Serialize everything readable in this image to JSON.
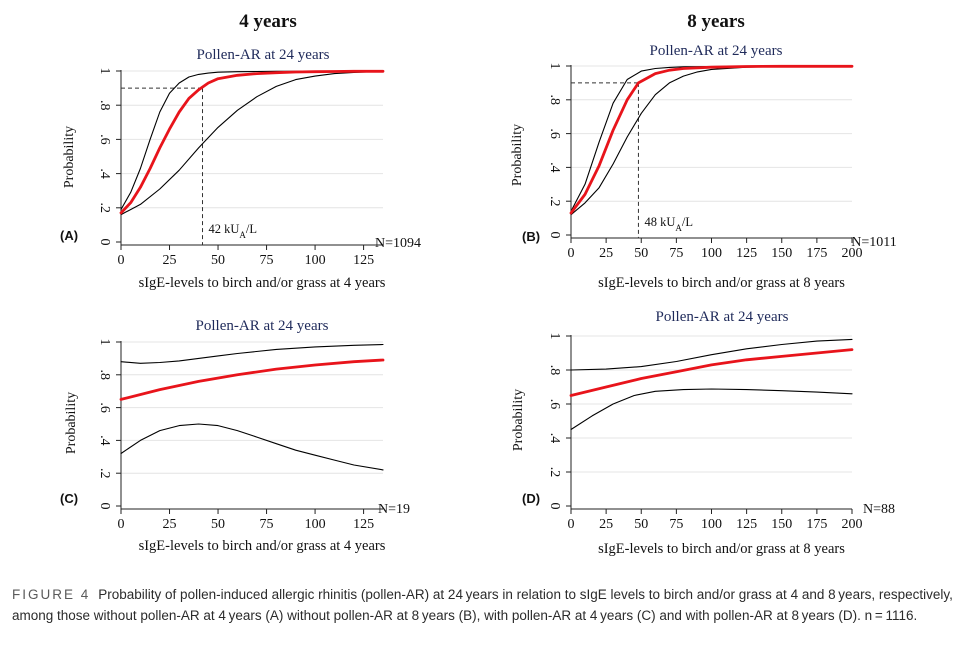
{
  "columns": {
    "left": "4 years",
    "right": "8 years"
  },
  "chart_data": [
    {
      "type": "line",
      "panel": "(A)",
      "title": "Pollen-AR at 24 years",
      "xlabel": "sIgE-levels to birch and/or grass at 4 years",
      "ylabel": "Probability",
      "n_label": "N=1094",
      "xlim": [
        0,
        135
      ],
      "ylim": [
        0,
        1
      ],
      "xticks": [
        "0",
        "25",
        "50",
        "75",
        "100",
        "125"
      ],
      "yticks": [
        "0",
        ".2",
        ".4",
        ".6",
        ".8",
        "1"
      ],
      "annotation": {
        "x": 42,
        "y": 0.9,
        "label_main": "42 kU",
        "label_sub": "A",
        "label_end": "/L"
      },
      "series": [
        {
          "role": "estimate",
          "color": "#e8141b",
          "x": [
            0,
            5,
            10,
            15,
            20,
            25,
            30,
            35,
            40,
            45,
            50,
            60,
            70,
            80,
            90,
            100,
            110,
            120,
            135
          ],
          "y": [
            0.17,
            0.23,
            0.32,
            0.43,
            0.55,
            0.66,
            0.76,
            0.84,
            0.89,
            0.93,
            0.955,
            0.975,
            0.985,
            0.99,
            0.994,
            0.996,
            0.997,
            0.998,
            0.998
          ]
        },
        {
          "role": "upper",
          "color": "#000000",
          "x": [
            0,
            5,
            10,
            15,
            20,
            25,
            30,
            35,
            40,
            45,
            50,
            60,
            70,
            80,
            90,
            100,
            110,
            120,
            135
          ],
          "y": [
            0.19,
            0.29,
            0.43,
            0.6,
            0.76,
            0.87,
            0.93,
            0.965,
            0.98,
            0.988,
            0.993,
            0.996,
            0.997,
            0.998,
            0.998,
            0.998,
            0.998,
            0.998,
            0.998
          ]
        },
        {
          "role": "lower",
          "color": "#000000",
          "x": [
            0,
            10,
            20,
            30,
            40,
            50,
            60,
            70,
            80,
            90,
            100,
            110,
            120,
            135
          ],
          "y": [
            0.16,
            0.22,
            0.31,
            0.42,
            0.55,
            0.67,
            0.77,
            0.85,
            0.91,
            0.95,
            0.97,
            0.985,
            0.992,
            0.998
          ]
        }
      ]
    },
    {
      "type": "line",
      "panel": "(B)",
      "title": "Pollen-AR at 24 years",
      "xlabel": "sIgE-levels to birch and/or grass at 8 years",
      "ylabel": "Probability",
      "n_label": "N=1011",
      "xlim": [
        0,
        200
      ],
      "ylim": [
        0,
        1
      ],
      "xticks": [
        "0",
        "25",
        "50",
        "75",
        "100",
        "125",
        "150",
        "175",
        "200"
      ],
      "yticks": [
        "0",
        ".2",
        ".4",
        ".6",
        ".8",
        "1"
      ],
      "annotation": {
        "x": 48,
        "y": 0.9,
        "label_main": "48 kU",
        "label_sub": "A",
        "label_end": "/L"
      },
      "series": [
        {
          "role": "estimate",
          "color": "#e8141b",
          "x": [
            0,
            10,
            20,
            30,
            40,
            48,
            60,
            70,
            80,
            100,
            125,
            150,
            175,
            200
          ],
          "y": [
            0.13,
            0.24,
            0.41,
            0.62,
            0.8,
            0.9,
            0.955,
            0.975,
            0.985,
            0.993,
            0.997,
            0.998,
            0.998,
            0.998
          ]
        },
        {
          "role": "upper",
          "color": "#000000",
          "x": [
            0,
            10,
            20,
            30,
            40,
            50,
            60,
            70,
            80,
            100,
            125,
            150,
            175,
            200
          ],
          "y": [
            0.14,
            0.3,
            0.55,
            0.78,
            0.92,
            0.97,
            0.985,
            0.992,
            0.995,
            0.997,
            0.998,
            0.998,
            0.998,
            0.998
          ]
        },
        {
          "role": "lower",
          "color": "#000000",
          "x": [
            0,
            10,
            20,
            30,
            40,
            50,
            60,
            70,
            80,
            90,
            100,
            125,
            150,
            175,
            200
          ],
          "y": [
            0.12,
            0.19,
            0.28,
            0.42,
            0.58,
            0.72,
            0.83,
            0.9,
            0.94,
            0.965,
            0.98,
            0.993,
            0.997,
            0.998,
            0.998
          ]
        }
      ]
    },
    {
      "type": "line",
      "panel": "(C)",
      "title": "Pollen-AR at 24 years",
      "xlabel": "sIgE-levels to birch and/or grass at 4 years",
      "ylabel": "Probability",
      "n_label": "N=19",
      "xlim": [
        0,
        135
      ],
      "ylim": [
        0,
        1
      ],
      "xticks": [
        "0",
        "25",
        "50",
        "75",
        "100",
        "125"
      ],
      "yticks": [
        "0",
        ".2",
        ".4",
        ".6",
        ".8",
        "1"
      ],
      "series": [
        {
          "role": "estimate",
          "color": "#e8141b",
          "x": [
            0,
            20,
            40,
            60,
            80,
            100,
            120,
            135
          ],
          "y": [
            0.65,
            0.71,
            0.76,
            0.8,
            0.835,
            0.86,
            0.88,
            0.89
          ]
        },
        {
          "role": "upper",
          "color": "#000000",
          "x": [
            0,
            10,
            20,
            30,
            40,
            50,
            60,
            80,
            100,
            120,
            135
          ],
          "y": [
            0.88,
            0.87,
            0.875,
            0.885,
            0.9,
            0.915,
            0.93,
            0.955,
            0.97,
            0.98,
            0.985
          ]
        },
        {
          "role": "lower",
          "color": "#000000",
          "x": [
            0,
            10,
            20,
            30,
            40,
            50,
            60,
            70,
            80,
            90,
            100,
            110,
            120,
            135
          ],
          "y": [
            0.32,
            0.4,
            0.46,
            0.49,
            0.5,
            0.49,
            0.46,
            0.42,
            0.38,
            0.34,
            0.31,
            0.28,
            0.25,
            0.22
          ]
        }
      ]
    },
    {
      "type": "line",
      "panel": "(D)",
      "title": "Pollen-AR at 24 years",
      "xlabel": "sIgE-levels to birch and/or grass at 8 years",
      "ylabel": "Probability",
      "n_label": "N=88",
      "xlim": [
        0,
        200
      ],
      "ylim": [
        0,
        1
      ],
      "xticks": [
        "0",
        "25",
        "50",
        "75",
        "100",
        "125",
        "150",
        "175",
        "200"
      ],
      "yticks": [
        "0",
        ".2",
        ".4",
        ".6",
        ".8",
        "1"
      ],
      "series": [
        {
          "role": "estimate",
          "color": "#e8141b",
          "x": [
            0,
            25,
            50,
            75,
            100,
            125,
            150,
            175,
            200
          ],
          "y": [
            0.65,
            0.7,
            0.75,
            0.79,
            0.83,
            0.86,
            0.88,
            0.9,
            0.92
          ]
        },
        {
          "role": "upper",
          "color": "#000000",
          "x": [
            0,
            25,
            50,
            75,
            100,
            125,
            150,
            175,
            200
          ],
          "y": [
            0.8,
            0.805,
            0.82,
            0.85,
            0.89,
            0.925,
            0.95,
            0.97,
            0.98
          ]
        },
        {
          "role": "lower",
          "color": "#000000",
          "x": [
            0,
            15,
            30,
            45,
            60,
            80,
            100,
            125,
            150,
            175,
            200
          ],
          "y": [
            0.45,
            0.53,
            0.6,
            0.65,
            0.675,
            0.685,
            0.688,
            0.685,
            0.678,
            0.67,
            0.66
          ]
        }
      ]
    }
  ],
  "caption": {
    "label": "FIGURE 4",
    "text": "Probability of pollen-induced allergic rhinitis (pollen-AR) at 24 years in relation to sIgE levels to birch and/or grass at 4 and 8 years, respectively, among those without pollen-AR at 4 years (A) without pollen-AR at 8 years (B), with pollen-AR at 4 years (C) and with pollen-AR at 8 years (D). n = 1116."
  }
}
